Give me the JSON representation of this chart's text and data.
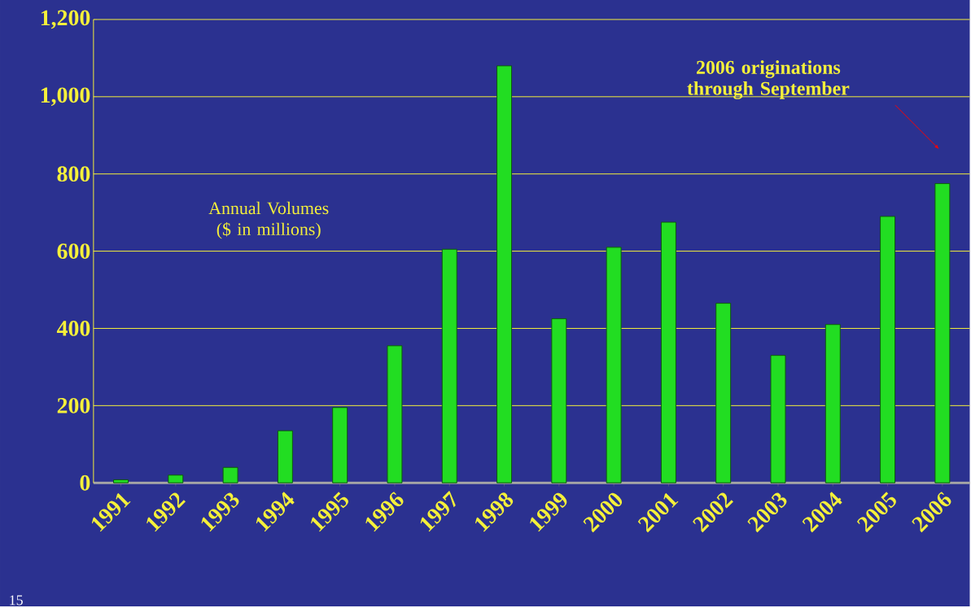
{
  "chart_data": {
    "type": "bar",
    "categories": [
      "1991",
      "1992",
      "1993",
      "1994",
      "1995",
      "1996",
      "1997",
      "1998",
      "1999",
      "2000",
      "2001",
      "2002",
      "2003",
      "2004",
      "2005",
      "2006"
    ],
    "values": [
      8,
      20,
      40,
      135,
      195,
      355,
      605,
      1080,
      425,
      610,
      675,
      465,
      330,
      410,
      690,
      775
    ],
    "color": "#22dd22",
    "ylim": [
      0,
      1200
    ],
    "yticks": [
      0,
      200,
      400,
      600,
      800,
      {
        "value": 1000,
        "label": "1,000"
      },
      {
        "value": 1200,
        "label": "1,200"
      }
    ],
    "grid": "y",
    "annotations": [
      "Annual Volumes ($ in millions)",
      "2006 originations through September",
      "15"
    ]
  }
}
